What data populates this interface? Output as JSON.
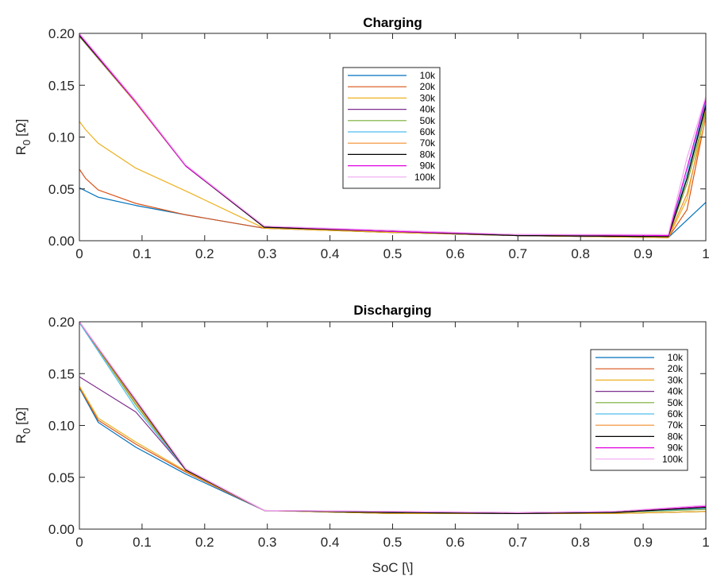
{
  "chart_data": [
    {
      "type": "line",
      "title": "Charging",
      "ylabel_main": "R",
      "ylabel_sub": "0",
      "ylabel_unit": "[Ω]",
      "xlabel": "",
      "xlim": [
        0,
        1
      ],
      "ylim": [
        0,
        0.2
      ],
      "xticks": [
        "0",
        "0.1",
        "0.2",
        "0.3",
        "0.4",
        "0.5",
        "0.6",
        "0.7",
        "0.8",
        "0.9",
        "1"
      ],
      "yticks": [
        "0.00",
        "0.05",
        "0.10",
        "0.15",
        "0.20"
      ],
      "legend_position": "upper-center",
      "series": [
        {
          "name": "10k",
          "color": "#0072BD",
          "x": [
            0,
            0.03,
            0.09,
            0.17,
            0.295,
            0.5,
            0.7,
            0.94,
            0.97,
            1.0
          ],
          "y": [
            0.051,
            0.042,
            0.034,
            0.025,
            0.012,
            0.008,
            0.005,
            0.003,
            0.02,
            0.037
          ]
        },
        {
          "name": "20k",
          "color": "#D95319",
          "x": [
            0,
            0.01,
            0.03,
            0.09,
            0.17,
            0.295,
            0.5,
            0.7,
            0.94,
            0.97,
            1.0
          ],
          "y": [
            0.069,
            0.06,
            0.049,
            0.036,
            0.025,
            0.012,
            0.008,
            0.005,
            0.003,
            0.03,
            0.12
          ]
        },
        {
          "name": "30k",
          "color": "#EDB120",
          "x": [
            0,
            0.01,
            0.03,
            0.09,
            0.17,
            0.295,
            0.5,
            0.7,
            0.94,
            0.97,
            1.0
          ],
          "y": [
            0.115,
            0.107,
            0.094,
            0.07,
            0.048,
            0.012,
            0.008,
            0.005,
            0.003,
            0.04,
            0.128
          ]
        },
        {
          "name": "40k",
          "color": "#7E2F8E",
          "x": [
            0,
            0.09,
            0.17,
            0.295,
            0.5,
            0.7,
            0.94,
            0.97,
            1.0
          ],
          "y": [
            0.197,
            0.133,
            0.072,
            0.013,
            0.009,
            0.005,
            0.004,
            0.06,
            0.133
          ]
        },
        {
          "name": "50k",
          "color": "#77AC30",
          "x": [
            0,
            0.09,
            0.17,
            0.295,
            0.5,
            0.7,
            0.94,
            0.97,
            1.0
          ],
          "y": [
            0.197,
            0.133,
            0.072,
            0.013,
            0.009,
            0.005,
            0.004,
            0.055,
            0.124
          ]
        },
        {
          "name": "60k",
          "color": "#4DBEEE",
          "x": [
            0,
            0.09,
            0.17,
            0.295,
            0.5,
            0.7,
            0.94,
            0.97,
            1.0
          ],
          "y": [
            0.198,
            0.133,
            0.072,
            0.013,
            0.009,
            0.005,
            0.004,
            0.065,
            0.135
          ]
        },
        {
          "name": "70k",
          "color": "#F28E2B",
          "x": [
            0,
            0.09,
            0.17,
            0.295,
            0.5,
            0.7,
            0.94,
            0.97,
            1.0
          ],
          "y": [
            0.198,
            0.133,
            0.072,
            0.013,
            0.009,
            0.005,
            0.004,
            0.045,
            0.118
          ]
        },
        {
          "name": "80k",
          "color": "#000000",
          "x": [
            0,
            0.09,
            0.17,
            0.295,
            0.5,
            0.7,
            0.94,
            0.97,
            1.0
          ],
          "y": [
            0.198,
            0.134,
            0.072,
            0.013,
            0.009,
            0.005,
            0.004,
            0.06,
            0.13
          ]
        },
        {
          "name": "90k",
          "color": "#E000E0",
          "x": [
            0,
            0.09,
            0.17,
            0.295,
            0.5,
            0.7,
            0.94,
            0.97,
            1.0
          ],
          "y": [
            0.199,
            0.134,
            0.072,
            0.014,
            0.009,
            0.006,
            0.005,
            0.07,
            0.137
          ]
        },
        {
          "name": "100k",
          "color": "#F2A6F2",
          "x": [
            0,
            0.09,
            0.17,
            0.295,
            0.5,
            0.7,
            0.94,
            0.97,
            1.0
          ],
          "y": [
            0.2,
            0.135,
            0.073,
            0.014,
            0.01,
            0.006,
            0.006,
            0.08,
            0.139
          ]
        }
      ]
    },
    {
      "type": "line",
      "title": "Discharging",
      "ylabel_main": "R",
      "ylabel_sub": "0",
      "ylabel_unit": "[Ω]",
      "xlabel": "SoC [\\]",
      "xlim": [
        0,
        1
      ],
      "ylim": [
        0,
        0.2
      ],
      "xticks": [
        "0",
        "0.1",
        "0.2",
        "0.3",
        "0.4",
        "0.5",
        "0.6",
        "0.7",
        "0.8",
        "0.9",
        "1"
      ],
      "yticks": [
        "0.00",
        "0.05",
        "0.10",
        "0.15",
        "0.20"
      ],
      "legend_position": "right",
      "series": [
        {
          "name": "10k",
          "color": "#0072BD",
          "x": [
            0,
            0.03,
            0.09,
            0.17,
            0.295,
            0.5,
            0.7,
            0.85,
            1.0
          ],
          "y": [
            0.136,
            0.103,
            0.079,
            0.053,
            0.018,
            0.015,
            0.015,
            0.015,
            0.017
          ]
        },
        {
          "name": "20k",
          "color": "#D95319",
          "x": [
            0,
            0.03,
            0.09,
            0.17,
            0.295,
            0.5,
            0.7,
            0.85,
            1.0
          ],
          "y": [
            0.137,
            0.105,
            0.082,
            0.055,
            0.018,
            0.015,
            0.015,
            0.015,
            0.017
          ]
        },
        {
          "name": "30k",
          "color": "#EDB120",
          "x": [
            0,
            0.03,
            0.09,
            0.17,
            0.295,
            0.5,
            0.7,
            0.85,
            1.0
          ],
          "y": [
            0.138,
            0.107,
            0.084,
            0.056,
            0.018,
            0.015,
            0.015,
            0.015,
            0.017
          ]
        },
        {
          "name": "40k",
          "color": "#7E2F8E",
          "x": [
            0,
            0.09,
            0.17,
            0.295,
            0.5,
            0.7,
            0.85,
            1.0
          ],
          "y": [
            0.147,
            0.113,
            0.057,
            0.018,
            0.016,
            0.015,
            0.016,
            0.02
          ]
        },
        {
          "name": "50k",
          "color": "#77AC30",
          "x": [
            0,
            0.09,
            0.17,
            0.295,
            0.5,
            0.7,
            0.85,
            1.0
          ],
          "y": [
            0.2,
            0.12,
            0.057,
            0.018,
            0.016,
            0.015,
            0.016,
            0.019
          ]
        },
        {
          "name": "60k",
          "color": "#4DBEEE",
          "x": [
            0,
            0.09,
            0.17,
            0.295,
            0.5,
            0.7,
            0.85,
            1.0
          ],
          "y": [
            0.199,
            0.117,
            0.057,
            0.018,
            0.016,
            0.015,
            0.016,
            0.02
          ]
        },
        {
          "name": "70k",
          "color": "#F28E2B",
          "x": [
            0,
            0.09,
            0.17,
            0.295,
            0.5,
            0.7,
            0.85,
            1.0
          ],
          "y": [
            0.2,
            0.122,
            0.057,
            0.018,
            0.016,
            0.015,
            0.016,
            0.021
          ]
        },
        {
          "name": "80k",
          "color": "#000000",
          "x": [
            0,
            0.09,
            0.17,
            0.295,
            0.5,
            0.7,
            0.85,
            1.0
          ],
          "y": [
            0.2,
            0.124,
            0.057,
            0.018,
            0.016,
            0.015,
            0.016,
            0.021
          ]
        },
        {
          "name": "90k",
          "color": "#E000E0",
          "x": [
            0,
            0.09,
            0.17,
            0.295,
            0.5,
            0.7,
            0.85,
            1.0
          ],
          "y": [
            0.2,
            0.125,
            0.058,
            0.018,
            0.017,
            0.016,
            0.017,
            0.022
          ]
        },
        {
          "name": "100k",
          "color": "#F2A6F2",
          "x": [
            0,
            0.09,
            0.17,
            0.295,
            0.5,
            0.7,
            0.85,
            1.0
          ],
          "y": [
            0.2,
            0.125,
            0.058,
            0.018,
            0.017,
            0.016,
            0.017,
            0.023
          ]
        }
      ]
    }
  ]
}
